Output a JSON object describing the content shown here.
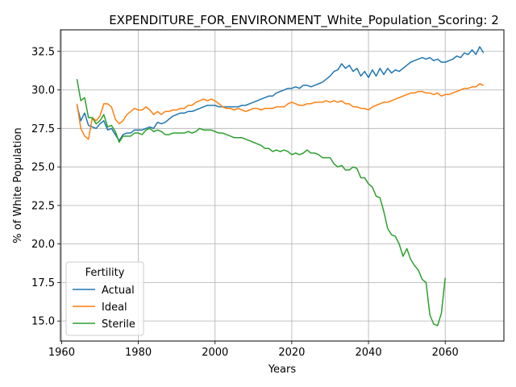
{
  "chart_data": {
    "type": "line",
    "title": "EXPENDITURE_FOR_ENVIRONMENT_White_Population_Scoring: 2",
    "xlabel": "Years",
    "ylabel": "% of White Population",
    "xlim": [
      1959.7,
      2075.3
    ],
    "ylim": [
      13.7,
      33.9
    ],
    "xticks": [
      1960,
      1980,
      2000,
      2020,
      2040,
      2060
    ],
    "yticks": [
      15.0,
      17.5,
      20.0,
      22.5,
      25.0,
      27.5,
      30.0,
      32.5
    ],
    "xtick_labels": [
      "1960",
      "1980",
      "2000",
      "2020",
      "2040",
      "2060"
    ],
    "ytick_labels": [
      "15.0",
      "17.5",
      "20.0",
      "22.5",
      "25.0",
      "27.5",
      "30.0",
      "32.5"
    ],
    "grid": true,
    "legend": {
      "title": "Fertility",
      "placement": "lower-left"
    },
    "series": [
      {
        "name": "Actual",
        "color": "#1f77b4",
        "points": [
          [
            1964,
            29.0
          ],
          [
            1965,
            28.0
          ],
          [
            1966,
            28.5
          ],
          [
            1967,
            27.7
          ],
          [
            1968,
            27.6
          ],
          [
            1969,
            27.5
          ],
          [
            1970,
            27.8
          ],
          [
            1971,
            28.0
          ],
          [
            1972,
            27.4
          ],
          [
            1973,
            27.5
          ],
          [
            1974,
            27.1
          ],
          [
            1975,
            26.7
          ],
          [
            1976,
            27.1
          ],
          [
            1977,
            27.2
          ],
          [
            1978,
            27.2
          ],
          [
            1979,
            27.4
          ],
          [
            1980,
            27.4
          ],
          [
            1981,
            27.4
          ],
          [
            1982,
            27.5
          ],
          [
            1983,
            27.6
          ],
          [
            1984,
            27.5
          ],
          [
            1985,
            27.9
          ],
          [
            1986,
            27.8
          ],
          [
            1987,
            27.9
          ],
          [
            1988,
            28.1
          ],
          [
            1989,
            28.3
          ],
          [
            1990,
            28.4
          ],
          [
            1991,
            28.5
          ],
          [
            1992,
            28.5
          ],
          [
            1993,
            28.6
          ],
          [
            1994,
            28.6
          ],
          [
            1995,
            28.7
          ],
          [
            1996,
            28.8
          ],
          [
            1997,
            28.9
          ],
          [
            1998,
            29.0
          ],
          [
            1999,
            29.0
          ],
          [
            2000,
            29.0
          ],
          [
            2001,
            28.9
          ],
          [
            2002,
            28.9
          ],
          [
            2003,
            28.9
          ],
          [
            2004,
            28.9
          ],
          [
            2005,
            28.9
          ],
          [
            2006,
            28.9
          ],
          [
            2007,
            29.0
          ],
          [
            2008,
            29.0
          ],
          [
            2009,
            29.1
          ],
          [
            2010,
            29.2
          ],
          [
            2011,
            29.3
          ],
          [
            2012,
            29.4
          ],
          [
            2013,
            29.5
          ],
          [
            2014,
            29.6
          ],
          [
            2015,
            29.6
          ],
          [
            2016,
            29.8
          ],
          [
            2017,
            29.9
          ],
          [
            2018,
            30.0
          ],
          [
            2019,
            30.1
          ],
          [
            2020,
            30.1
          ],
          [
            2021,
            30.2
          ],
          [
            2022,
            30.1
          ],
          [
            2023,
            30.3
          ],
          [
            2024,
            30.3
          ],
          [
            2025,
            30.2
          ],
          [
            2026,
            30.3
          ],
          [
            2027,
            30.4
          ],
          [
            2028,
            30.5
          ],
          [
            2029,
            30.7
          ],
          [
            2030,
            30.9
          ],
          [
            2031,
            31.2
          ],
          [
            2032,
            31.3
          ],
          [
            2033,
            31.7
          ],
          [
            2034,
            31.4
          ],
          [
            2035,
            31.6
          ],
          [
            2036,
            31.2
          ],
          [
            2037,
            31.4
          ],
          [
            2038,
            30.9
          ],
          [
            2039,
            31.2
          ],
          [
            2040,
            30.8
          ],
          [
            2041,
            31.3
          ],
          [
            2042,
            30.9
          ],
          [
            2043,
            31.4
          ],
          [
            2044,
            31.0
          ],
          [
            2045,
            31.4
          ],
          [
            2046,
            31.1
          ],
          [
            2047,
            31.3
          ],
          [
            2048,
            31.2
          ],
          [
            2049,
            31.4
          ],
          [
            2050,
            31.6
          ],
          [
            2051,
            31.8
          ],
          [
            2052,
            31.9
          ],
          [
            2053,
            32.0
          ],
          [
            2054,
            32.1
          ],
          [
            2055,
            32.0
          ],
          [
            2056,
            32.1
          ],
          [
            2057,
            31.9
          ],
          [
            2058,
            32.0
          ],
          [
            2059,
            31.8
          ],
          [
            2060,
            31.8
          ],
          [
            2061,
            31.9
          ],
          [
            2062,
            32.0
          ],
          [
            2063,
            32.2
          ],
          [
            2064,
            32.1
          ],
          [
            2065,
            32.4
          ],
          [
            2066,
            32.3
          ],
          [
            2067,
            32.6
          ],
          [
            2068,
            32.3
          ],
          [
            2069,
            32.8
          ],
          [
            2070,
            32.4
          ]
        ]
      },
      {
        "name": "Ideal",
        "color": "#ff7f0e",
        "points": [
          [
            1964,
            29.1
          ],
          [
            1965,
            27.5
          ],
          [
            1966,
            27.0
          ],
          [
            1967,
            26.8
          ],
          [
            1968,
            28.2
          ],
          [
            1969,
            28.0
          ],
          [
            1970,
            28.3
          ],
          [
            1971,
            29.1
          ],
          [
            1972,
            29.1
          ],
          [
            1973,
            28.9
          ],
          [
            1974,
            28.1
          ],
          [
            1975,
            27.8
          ],
          [
            1976,
            28.0
          ],
          [
            1977,
            28.4
          ],
          [
            1978,
            28.6
          ],
          [
            1979,
            28.8
          ],
          [
            1980,
            28.7
          ],
          [
            1981,
            28.7
          ],
          [
            1982,
            28.9
          ],
          [
            1983,
            28.7
          ],
          [
            1984,
            28.4
          ],
          [
            1985,
            28.6
          ],
          [
            1986,
            28.4
          ],
          [
            1987,
            28.6
          ],
          [
            1988,
            28.6
          ],
          [
            1989,
            28.7
          ],
          [
            1990,
            28.7
          ],
          [
            1991,
            28.8
          ],
          [
            1992,
            28.8
          ],
          [
            1993,
            29.0
          ],
          [
            1994,
            29.0
          ],
          [
            1995,
            29.2
          ],
          [
            1996,
            29.3
          ],
          [
            1997,
            29.4
          ],
          [
            1998,
            29.3
          ],
          [
            1999,
            29.4
          ],
          [
            2000,
            29.3
          ],
          [
            2001,
            29.1
          ],
          [
            2002,
            28.9
          ],
          [
            2003,
            28.8
          ],
          [
            2004,
            28.8
          ],
          [
            2005,
            28.7
          ],
          [
            2006,
            28.8
          ],
          [
            2007,
            28.7
          ],
          [
            2008,
            28.6
          ],
          [
            2009,
            28.7
          ],
          [
            2010,
            28.8
          ],
          [
            2011,
            28.8
          ],
          [
            2012,
            28.7
          ],
          [
            2013,
            28.8
          ],
          [
            2014,
            28.8
          ],
          [
            2015,
            28.8
          ],
          [
            2016,
            28.9
          ],
          [
            2017,
            28.9
          ],
          [
            2018,
            28.9
          ],
          [
            2019,
            29.1
          ],
          [
            2020,
            29.2
          ],
          [
            2021,
            29.1
          ],
          [
            2022,
            29.0
          ],
          [
            2023,
            29.0
          ],
          [
            2024,
            29.1
          ],
          [
            2025,
            29.1
          ],
          [
            2026,
            29.2
          ],
          [
            2027,
            29.2
          ],
          [
            2028,
            29.2
          ],
          [
            2029,
            29.3
          ],
          [
            2030,
            29.2
          ],
          [
            2031,
            29.3
          ],
          [
            2032,
            29.2
          ],
          [
            2033,
            29.3
          ],
          [
            2034,
            29.1
          ],
          [
            2035,
            29.1
          ],
          [
            2036,
            28.9
          ],
          [
            2037,
            28.9
          ],
          [
            2038,
            28.8
          ],
          [
            2039,
            28.8
          ],
          [
            2040,
            28.7
          ],
          [
            2041,
            28.9
          ],
          [
            2042,
            29.0
          ],
          [
            2043,
            29.1
          ],
          [
            2044,
            29.2
          ],
          [
            2045,
            29.2
          ],
          [
            2046,
            29.3
          ],
          [
            2047,
            29.4
          ],
          [
            2048,
            29.5
          ],
          [
            2049,
            29.6
          ],
          [
            2050,
            29.7
          ],
          [
            2051,
            29.8
          ],
          [
            2052,
            29.8
          ],
          [
            2053,
            29.9
          ],
          [
            2054,
            29.9
          ],
          [
            2055,
            29.8
          ],
          [
            2056,
            29.8
          ],
          [
            2057,
            29.7
          ],
          [
            2058,
            29.8
          ],
          [
            2059,
            29.6
          ],
          [
            2060,
            29.7
          ],
          [
            2061,
            29.7
          ],
          [
            2062,
            29.8
          ],
          [
            2063,
            29.9
          ],
          [
            2064,
            30.0
          ],
          [
            2065,
            30.1
          ],
          [
            2066,
            30.1
          ],
          [
            2067,
            30.2
          ],
          [
            2068,
            30.2
          ],
          [
            2069,
            30.4
          ],
          [
            2070,
            30.3
          ]
        ]
      },
      {
        "name": "Sterile",
        "color": "#2ca02c",
        "points": [
          [
            1964,
            30.7
          ],
          [
            1965,
            29.3
          ],
          [
            1966,
            29.5
          ],
          [
            1967,
            28.2
          ],
          [
            1968,
            28.2
          ],
          [
            1969,
            27.8
          ],
          [
            1970,
            28.0
          ],
          [
            1971,
            28.4
          ],
          [
            1972,
            27.6
          ],
          [
            1973,
            27.7
          ],
          [
            1974,
            27.3
          ],
          [
            1975,
            26.6
          ],
          [
            1976,
            27.0
          ],
          [
            1977,
            27.0
          ],
          [
            1978,
            27.0
          ],
          [
            1979,
            27.2
          ],
          [
            1980,
            27.2
          ],
          [
            1981,
            27.1
          ],
          [
            1982,
            27.4
          ],
          [
            1983,
            27.5
          ],
          [
            1984,
            27.3
          ],
          [
            1985,
            27.4
          ],
          [
            1986,
            27.3
          ],
          [
            1987,
            27.1
          ],
          [
            1988,
            27.1
          ],
          [
            1989,
            27.2
          ],
          [
            1990,
            27.2
          ],
          [
            1991,
            27.2
          ],
          [
            1992,
            27.2
          ],
          [
            1993,
            27.3
          ],
          [
            1994,
            27.2
          ],
          [
            1995,
            27.3
          ],
          [
            1996,
            27.5
          ],
          [
            1997,
            27.4
          ],
          [
            1998,
            27.4
          ],
          [
            1999,
            27.4
          ],
          [
            2000,
            27.3
          ],
          [
            2001,
            27.2
          ],
          [
            2002,
            27.2
          ],
          [
            2003,
            27.1
          ],
          [
            2004,
            27.0
          ],
          [
            2005,
            26.9
          ],
          [
            2006,
            26.9
          ],
          [
            2007,
            26.9
          ],
          [
            2008,
            26.8
          ],
          [
            2009,
            26.7
          ],
          [
            2010,
            26.6
          ],
          [
            2011,
            26.5
          ],
          [
            2012,
            26.4
          ],
          [
            2013,
            26.2
          ],
          [
            2014,
            26.2
          ],
          [
            2015,
            26.0
          ],
          [
            2016,
            26.1
          ],
          [
            2017,
            26.0
          ],
          [
            2018,
            26.1
          ],
          [
            2019,
            26.0
          ],
          [
            2020,
            25.8
          ],
          [
            2021,
            25.9
          ],
          [
            2022,
            25.8
          ],
          [
            2023,
            25.9
          ],
          [
            2024,
            26.1
          ],
          [
            2025,
            25.9
          ],
          [
            2026,
            25.9
          ],
          [
            2027,
            25.8
          ],
          [
            2028,
            25.6
          ],
          [
            2029,
            25.6
          ],
          [
            2030,
            25.6
          ],
          [
            2031,
            25.2
          ],
          [
            2032,
            25.0
          ],
          [
            2033,
            25.1
          ],
          [
            2034,
            24.8
          ],
          [
            2035,
            24.8
          ],
          [
            2036,
            25.0
          ],
          [
            2037,
            24.9
          ],
          [
            2038,
            24.3
          ],
          [
            2039,
            24.3
          ],
          [
            2040,
            23.9
          ],
          [
            2041,
            23.7
          ],
          [
            2042,
            23.1
          ],
          [
            2043,
            23.0
          ],
          [
            2044,
            22.1
          ],
          [
            2045,
            21.0
          ],
          [
            2046,
            20.6
          ],
          [
            2047,
            20.5
          ],
          [
            2048,
            20.0
          ],
          [
            2049,
            19.2
          ],
          [
            2050,
            19.7
          ],
          [
            2051,
            19.0
          ],
          [
            2052,
            18.6
          ],
          [
            2053,
            18.3
          ],
          [
            2054,
            17.7
          ],
          [
            2055,
            17.5
          ],
          [
            2056,
            15.4
          ],
          [
            2057,
            14.8
          ],
          [
            2058,
            14.7
          ],
          [
            2059,
            15.5
          ],
          [
            2060,
            17.8
          ]
        ]
      }
    ]
  }
}
